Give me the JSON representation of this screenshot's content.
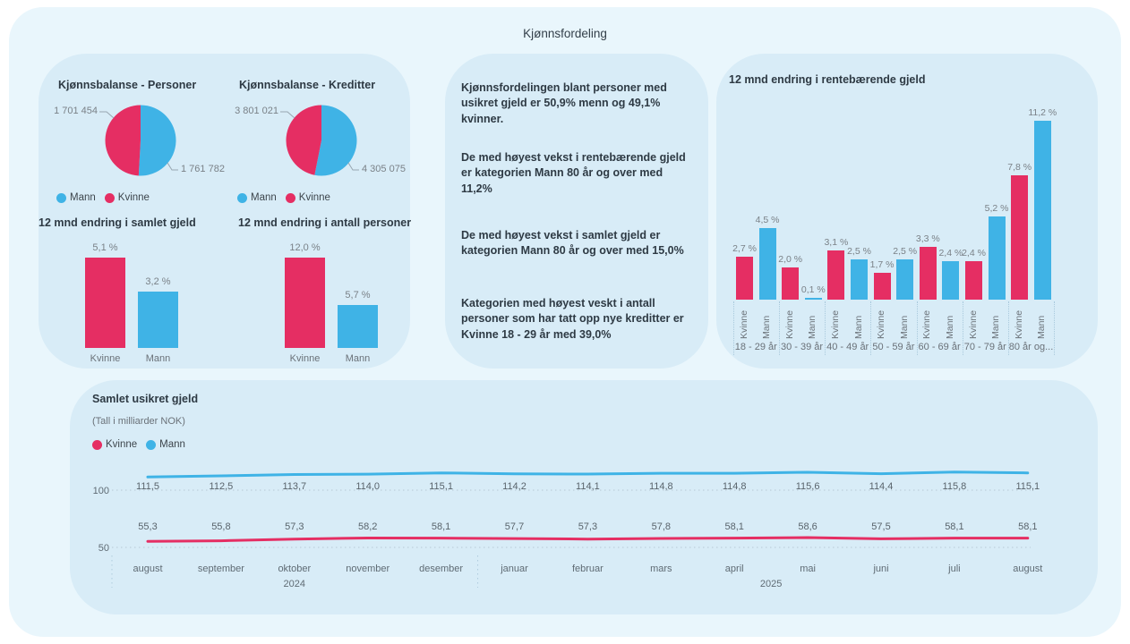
{
  "page": {
    "title": "Kjønnsfordeling"
  },
  "colors": {
    "kvinne": "#E52E63",
    "mann": "#3FB3E6"
  },
  "insights": [
    "Kjønnsfordelingen blant personer med usikret gjeld er 50,9% menn og 49,1% kvinner.",
    "De med høyest vekst i rentebærende gjeld er kategorien Mann 80 år og over med 11,2%",
    "De med høyest vekst i samlet gjeld er kategorien Mann 80 år og over med 15,0%",
    "Kategorien med høyest veskt i antall personer som har tatt opp nye kreditter er Kvinne 18 - 29 år med 39,0%"
  ],
  "chart_data": [
    {
      "type": "pie",
      "title": "Kjønnsbalanse - Personer",
      "slices": [
        {
          "name": "Mann",
          "value": 1761782,
          "label": "1 761 782"
        },
        {
          "name": "Kvinne",
          "value": 1701454,
          "label": "1 701 454"
        }
      ],
      "legend": [
        "Mann",
        "Kvinne"
      ]
    },
    {
      "type": "pie",
      "title": "Kjønnsbalanse - Kreditter",
      "slices": [
        {
          "name": "Mann",
          "value": 4305075,
          "label": "4 305 075"
        },
        {
          "name": "Kvinne",
          "value": 3801021,
          "label": "3 801 021"
        }
      ],
      "legend": [
        "Mann",
        "Kvinne"
      ]
    },
    {
      "type": "bar",
      "title": "12 mnd endring i samlet gjeld",
      "unit": "%",
      "categories": [
        "Kvinne",
        "Mann"
      ],
      "values": [
        5.1,
        3.2
      ],
      "value_labels": [
        "5,1 %",
        "3,2 %"
      ]
    },
    {
      "type": "bar",
      "title": "12 mnd endring i antall personer",
      "unit": "%",
      "categories": [
        "Kvinne",
        "Mann"
      ],
      "values": [
        12.0,
        5.7
      ],
      "value_labels": [
        "12,0 %",
        "5,7 %"
      ]
    },
    {
      "type": "bar",
      "title": "12 mnd endring i rentebærende gjeld",
      "unit": "%",
      "categories": [
        "18 - 29 år",
        "30 - 39 år",
        "40 - 49 år",
        "50 - 59 år",
        "60 - 69 år",
        "70 - 79 år",
        "80 år og..."
      ],
      "series": [
        {
          "name": "Kvinne",
          "values": [
            2.7,
            2.0,
            3.1,
            1.7,
            3.3,
            2.4,
            7.8
          ],
          "value_labels": [
            "2,7 %",
            "2,0 %",
            "3,1 %",
            "1,7 %",
            "3,3 %",
            "2,4 %",
            "7,8 %"
          ]
        },
        {
          "name": "Mann",
          "values": [
            4.5,
            0.1,
            2.5,
            2.5,
            2.4,
            5.2,
            11.2
          ],
          "value_labels": [
            "4,5 %",
            "0,1 %",
            "2,5 %",
            "2,5 %",
            "2,4 %",
            "5,2 %",
            "11,2 %"
          ]
        }
      ]
    },
    {
      "type": "line",
      "title": "Samlet usikret gjeld",
      "subtitle": "(Tall i milliarder NOK)",
      "legend": [
        "Kvinne",
        "Mann"
      ],
      "y_ticks": [
        "100",
        "50"
      ],
      "x": [
        "august",
        "september",
        "oktober",
        "november",
        "desember",
        "januar",
        "februar",
        "mars",
        "april",
        "mai",
        "juni",
        "juli",
        "august"
      ],
      "year_labels": [
        "2024",
        "2025"
      ],
      "series": [
        {
          "name": "Kvinne",
          "values": [
            55.3,
            55.8,
            57.3,
            58.2,
            58.1,
            57.7,
            57.3,
            57.8,
            58.1,
            58.6,
            57.5,
            58.1,
            58.1
          ],
          "value_labels": [
            "55,3",
            "55,8",
            "57,3",
            "58,2",
            "58,1",
            "57,7",
            "57,3",
            "57,8",
            "58,1",
            "58,6",
            "57,5",
            "58,1",
            "58,1"
          ]
        },
        {
          "name": "Mann",
          "values": [
            111.5,
            112.5,
            113.7,
            114.0,
            115.1,
            114.2,
            114.1,
            114.8,
            114.8,
            115.6,
            114.4,
            115.8,
            115.1
          ],
          "value_labels": [
            "111,5",
            "112,5",
            "113,7",
            "114,0",
            "115,1",
            "114,2",
            "114,1",
            "114,8",
            "114,8",
            "115,6",
            "114,4",
            "115,8",
            "115,1"
          ]
        }
      ]
    }
  ]
}
